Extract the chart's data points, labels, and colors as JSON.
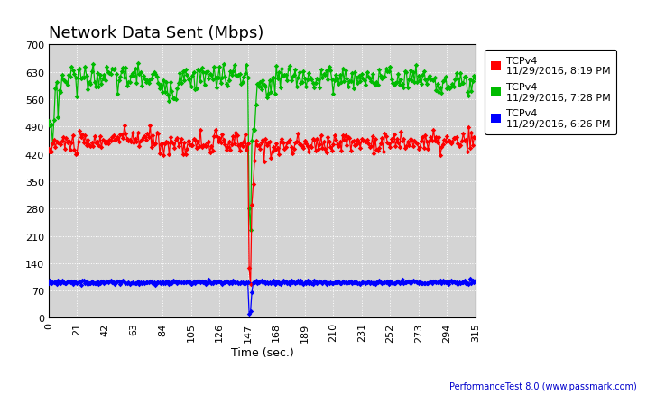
{
  "title": "Network Data Sent (Mbps)",
  "xlabel": "Time (sec.)",
  "xlim": [
    0,
    315
  ],
  "ylim": [
    0,
    700
  ],
  "yticks": [
    0,
    70,
    140,
    210,
    280,
    350,
    420,
    490,
    560,
    630,
    700
  ],
  "xticks": [
    0.0,
    21.0,
    42.0,
    63.0,
    84.0,
    105.0,
    126.0,
    147.0,
    168.0,
    189.0,
    210.0,
    231.0,
    252.0,
    273.0,
    294.0,
    315.0
  ],
  "fig_bg_color": "#ffffff",
  "plot_bg_color": "#d4d4d4",
  "legend": [
    {
      "label": "TCPv4\n11/29/2016, 8:19 PM",
      "color": "#ff0000"
    },
    {
      "label": "TCPv4\n11/29/2016, 7:28 PM",
      "color": "#00bb00"
    },
    {
      "label": "TCPv4\n11/29/2016, 6:26 PM",
      "color": "#0000ff"
    }
  ],
  "watermark": "PerformanceTest 8.0 (www.passmark.com)",
  "title_fontsize": 13,
  "tick_fontsize": 8,
  "legend_fontsize": 8
}
